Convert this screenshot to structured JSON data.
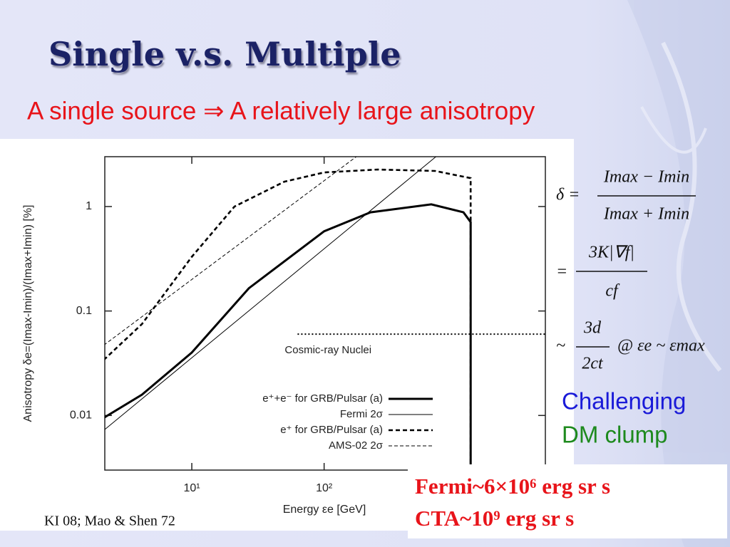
{
  "title": "Single v.s. Multiple",
  "subtitle": "A single source ⇒ A relatively large anisotropy",
  "chart_data": {
    "type": "line",
    "xlabel": "Energy εe [GeV]",
    "ylabel": "Anisotropy δe=(Imax-Imin)/(Imax+Imin) [%]",
    "xscale": "log",
    "yscale": "log",
    "xlim": [
      2.2,
      4700
    ],
    "ylim": [
      0.003,
      3
    ],
    "xticks": [
      {
        "value": 10,
        "label": "10¹"
      },
      {
        "value": 100,
        "label": "10²"
      }
    ],
    "yticks": [
      {
        "value": 0.01,
        "label": "0.01"
      },
      0.1,
      1
    ],
    "legend": "lower right",
    "series": [
      {
        "name": "e⁺+e⁻ for GRB/Pulsar (a)",
        "color": "#000000",
        "style": "solid-thick",
        "x": [
          2.16,
          4.2,
          10,
          27,
          100,
          224,
          646,
          1130,
          1280,
          1280
        ],
        "values": [
          0.0095,
          0.0158,
          0.04,
          0.165,
          0.58,
          0.88,
          1.05,
          0.88,
          0.71,
          0.003
        ]
      },
      {
        "name": "Fermi 2σ",
        "color": "#000000",
        "style": "solid-thin",
        "x": [
          2.16,
          700
        ],
        "values": [
          0.0072,
          3
        ]
      },
      {
        "name": "e⁺ for GRB/Pulsar (a)",
        "color": "#000000",
        "style": "dashed-thick",
        "x": [
          2.16,
          4.2,
          10,
          21,
          50,
          100,
          254,
          690,
          1280,
          1280
        ],
        "values": [
          0.034,
          0.075,
          0.33,
          1,
          1.73,
          2.12,
          2.26,
          2.19,
          1.87,
          0.003
        ]
      },
      {
        "name": "AMS-02 2σ",
        "color": "#000000",
        "style": "dashed-thin",
        "x": [
          2.16,
          175
        ],
        "values": [
          0.047,
          3
        ]
      }
    ],
    "annotations": [
      {
        "text": "Cosmic-ray Nuclei",
        "x": [
          63,
          4700
        ],
        "y": 0.06
      }
    ]
  },
  "formula": {
    "lines": [
      {
        "lhs": "δ =",
        "numerator": "Imax − Imin",
        "denominator": "Imax + Imin"
      },
      {
        "lhs": "=",
        "numerator": "3K|∇f|",
        "denominator": "cf"
      },
      {
        "lhs": "~",
        "numerator": "3d",
        "denominator": "2ct",
        "rhs": "@ εe ~ εmax"
      }
    ]
  },
  "side_note": [
    "Challenging",
    "DM clump"
  ],
  "box": [
    "Fermi~6×10⁶ erg sr s",
    "CTA~10⁹ erg sr s"
  ],
  "citation": "KI 08; Mao & Shen 72"
}
